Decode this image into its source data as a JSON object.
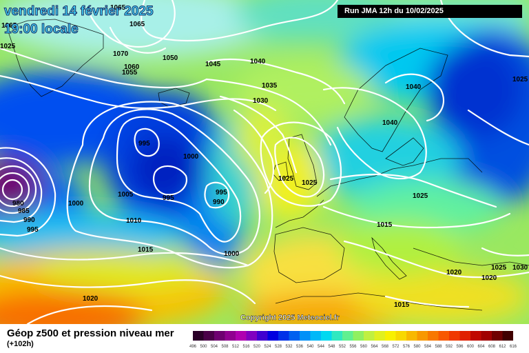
{
  "header": {
    "date_line1": "vendredi 14 février 2025",
    "date_line2": "19:00 locale",
    "run_info": "Run JMA 12h du 10/02/2025"
  },
  "footer": {
    "title": "Géop z500 et pression niveau mer",
    "subtitle": "(+102h)",
    "copyright": "Copyright 2025 Meteociel.fr"
  },
  "isobar_labels": [
    "1065",
    "1065",
    "1025",
    "1065",
    "1070",
    "1060",
    "1055",
    "1050",
    "1045",
    "1040",
    "1035",
    "1030",
    "1040",
    "1040",
    "1025",
    "995",
    "1000",
    "995",
    "995",
    "990",
    "1005",
    "1000",
    "1010",
    "1015",
    "1000",
    "980",
    "985",
    "990",
    "995",
    "1020",
    "1025",
    "1025",
    "1015",
    "1020",
    "1025",
    "1025",
    "1030",
    "1015",
    "1020"
  ],
  "scale": {
    "values": [
      "496",
      "500",
      "504",
      "508",
      "512",
      "516",
      "520",
      "524",
      "528",
      "532",
      "536",
      "540",
      "544",
      "548",
      "552",
      "556",
      "560",
      "564",
      "568",
      "572",
      "576",
      "580",
      "584",
      "588",
      "592",
      "596",
      "600",
      "604",
      "608",
      "612",
      "616"
    ],
    "colors": [
      "#2a0028",
      "#4a0048",
      "#6e0070",
      "#900090",
      "#b000b0",
      "#8000c0",
      "#4000d0",
      "#0000e0",
      "#0030e8",
      "#0060f0",
      "#0090f8",
      "#00b8f8",
      "#00d8f0",
      "#30e8c0",
      "#60f090",
      "#90f060",
      "#c0f040",
      "#e0f020",
      "#f8f000",
      "#f8d800",
      "#f8b800",
      "#f89800",
      "#f87800",
      "#f85800",
      "#f03800",
      "#e02000",
      "#c00800",
      "#a00000",
      "#700000",
      "#400000"
    ]
  },
  "colors": {
    "background_run_box": "#000000",
    "date_text": "#3ed8ff",
    "isobar": "#ffffff"
  }
}
